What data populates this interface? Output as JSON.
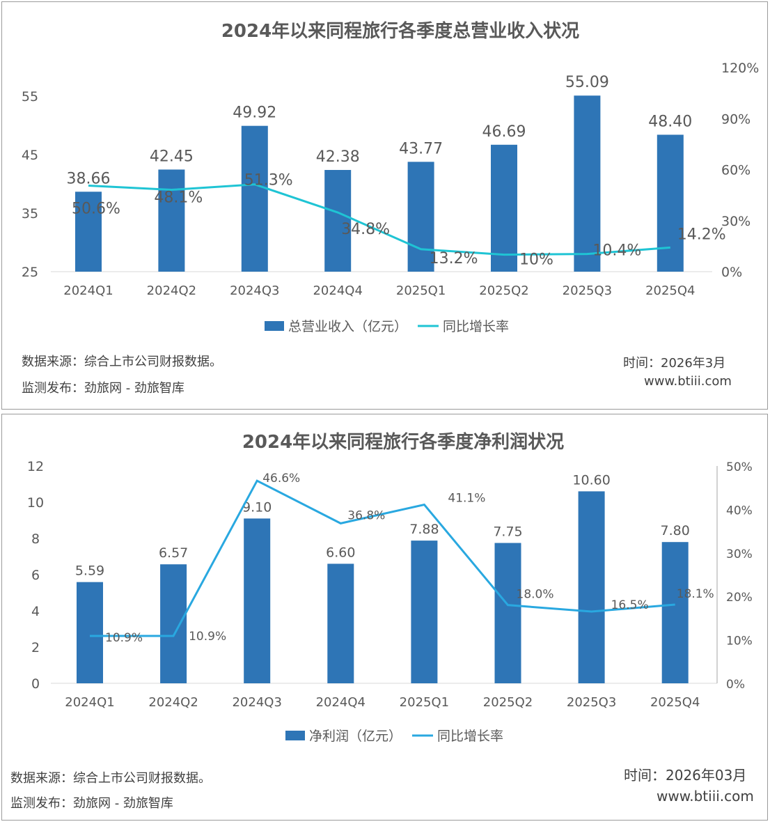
{
  "chart_data": [
    {
      "type": "bar",
      "title": "2024年以来同程旅行各季度总营业收入状况",
      "categories": [
        "2024Q1",
        "2024Q2",
        "2024Q3",
        "2024Q4",
        "2025Q1",
        "2025Q2",
        "2025Q3",
        "2025Q4"
      ],
      "series": [
        {
          "name": "总营业收入（亿元）",
          "type": "bar",
          "axis": "left",
          "values": [
            38.66,
            42.45,
            49.92,
            42.38,
            43.77,
            46.69,
            55.09,
            48.4
          ],
          "labels": [
            "38.66",
            "42.45",
            "49.92",
            "42.38",
            "43.77",
            "46.69",
            "55.09",
            "48.40"
          ],
          "color": "#2e75b6"
        },
        {
          "name": "同比增长率",
          "type": "line",
          "axis": "right",
          "values": [
            50.6,
            48.1,
            51.3,
            34.8,
            13.2,
            10,
            10.4,
            14.2
          ],
          "labels": [
            "50.6%",
            "48.1%",
            "51.3%",
            "34.8%",
            "13.2%",
            "10%",
            "10.4%",
            "14.2%"
          ],
          "color": "#1fc4d4"
        }
      ],
      "y_left": {
        "range": [
          25,
          55
        ],
        "ticks": [
          "25",
          "35",
          "45",
          "55"
        ]
      },
      "y_right": {
        "range": [
          0,
          120
        ],
        "ticks": [
          "0%",
          "30%",
          "60%",
          "90%",
          "120%"
        ]
      },
      "legend": "bottom",
      "grid": false,
      "source": "数据来源：综合上市公司财报数据。",
      "publisher": "监测发布：劲旅网 - 劲旅智库",
      "time": "时间：2026年3月",
      "site": "www.btiii.com"
    },
    {
      "type": "bar",
      "title": "2024年以来同程旅行各季度净利润状况",
      "categories": [
        "2024Q1",
        "2024Q2",
        "2024Q3",
        "2024Q4",
        "2025Q1",
        "2025Q2",
        "2025Q3",
        "2025Q4"
      ],
      "series": [
        {
          "name": "净利润（亿元）",
          "type": "bar",
          "axis": "left",
          "values": [
            5.59,
            6.57,
            9.1,
            6.6,
            7.88,
            7.75,
            10.6,
            7.8
          ],
          "labels": [
            "5.59",
            "6.57",
            "9.10",
            "6.60",
            "7.88",
            "7.75",
            "10.60",
            "7.80"
          ],
          "color": "#2e75b6"
        },
        {
          "name": "同比增长率",
          "type": "line",
          "axis": "right",
          "values": [
            10.9,
            10.9,
            46.6,
            36.8,
            41.1,
            18.0,
            16.5,
            18.1
          ],
          "labels": [
            "10.9%",
            "10.9%",
            "46.6%",
            "36.8%",
            "41.1%",
            "18.0%",
            "16.5%",
            "18.1%"
          ],
          "color": "#29a8e0"
        }
      ],
      "y_left": {
        "range": [
          0,
          12
        ],
        "ticks": [
          "0",
          "2",
          "4",
          "6",
          "8",
          "10",
          "12"
        ]
      },
      "y_right": {
        "range": [
          0,
          50
        ],
        "ticks": [
          "0%",
          "10%",
          "20%",
          "30%",
          "40%",
          "50%"
        ]
      },
      "legend": "bottom",
      "grid": false,
      "source": "数据来源：综合上市公司财报数据。",
      "publisher": "监测发布：劲旅网 - 劲旅智库",
      "time": "时间：2026年03月",
      "site": "www.btiii.com"
    }
  ]
}
